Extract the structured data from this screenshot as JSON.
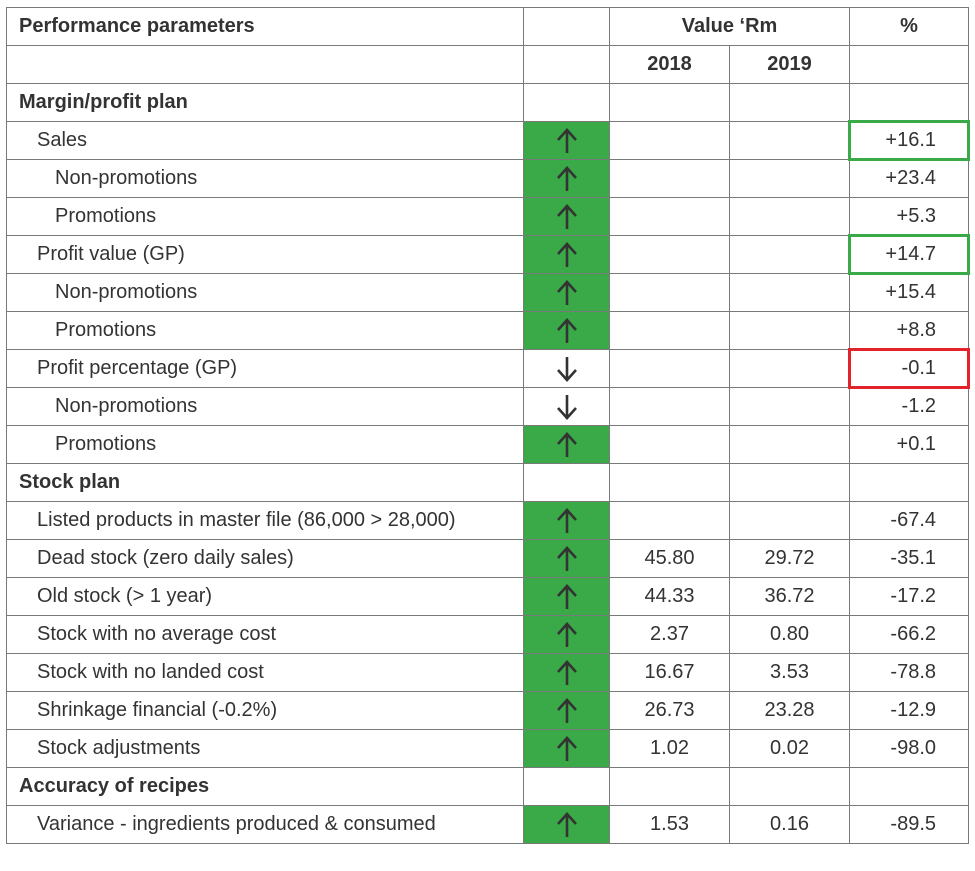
{
  "header": {
    "param": "Performance parameters",
    "value": "Value ‘Rm",
    "pct": "%",
    "y2018": "2018",
    "y2019": "2019"
  },
  "arrow_icon_names": {
    "up": "up-arrow-icon",
    "down": "down-arrow-icon"
  },
  "colors": {
    "up_fill": "#3aaa49",
    "highlight_green": "#3aaa49",
    "highlight_red": "#e2232b"
  },
  "sections": {
    "margin": "Margin/profit plan",
    "stock": "Stock plan",
    "recipes": "Accuracy of recipes"
  },
  "rows": [
    {
      "label": "Sales",
      "indent": 1,
      "arrow": "up",
      "v2018": "",
      "v2019": "",
      "pct": "+16.1",
      "highlight": "green"
    },
    {
      "label": "Non-promotions",
      "indent": 2,
      "arrow": "up",
      "v2018": "",
      "v2019": "",
      "pct": "+23.4",
      "highlight": ""
    },
    {
      "label": "Promotions",
      "indent": 2,
      "arrow": "up",
      "v2018": "",
      "v2019": "",
      "pct": "+5.3",
      "highlight": ""
    },
    {
      "label": "Profit value (GP)",
      "indent": 1,
      "arrow": "up",
      "v2018": "",
      "v2019": "",
      "pct": "+14.7",
      "highlight": "green"
    },
    {
      "label": "Non-promotions",
      "indent": 2,
      "arrow": "up",
      "v2018": "",
      "v2019": "",
      "pct": "+15.4",
      "highlight": ""
    },
    {
      "label": "Promotions",
      "indent": 2,
      "arrow": "up",
      "v2018": "",
      "v2019": "",
      "pct": "+8.8",
      "highlight": ""
    },
    {
      "label": "Profit percentage (GP)",
      "indent": 1,
      "arrow": "down",
      "v2018": "",
      "v2019": "",
      "pct": "-0.1",
      "highlight": "red"
    },
    {
      "label": "Non-promotions",
      "indent": 2,
      "arrow": "down",
      "v2018": "",
      "v2019": "",
      "pct": "-1.2",
      "highlight": ""
    },
    {
      "label": "Promotions",
      "indent": 2,
      "arrow": "up",
      "v2018": "",
      "v2019": "",
      "pct": "+0.1",
      "highlight": ""
    },
    {
      "label": "Listed products in master file (86,000 > 28,000)",
      "indent": 1,
      "arrow": "up",
      "v2018": "",
      "v2019": "",
      "pct": "-67.4",
      "highlight": ""
    },
    {
      "label": "Dead stock (zero daily sales)",
      "indent": 1,
      "arrow": "up",
      "v2018": "45.80",
      "v2019": "29.72",
      "pct": "-35.1",
      "highlight": ""
    },
    {
      "label": "Old stock (> 1 year)",
      "indent": 1,
      "arrow": "up",
      "v2018": "44.33",
      "v2019": "36.72",
      "pct": "-17.2",
      "highlight": ""
    },
    {
      "label": "Stock with no average cost",
      "indent": 1,
      "arrow": "up",
      "v2018": "2.37",
      "v2019": "0.80",
      "pct": "-66.2",
      "highlight": ""
    },
    {
      "label": "Stock with no landed cost",
      "indent": 1,
      "arrow": "up",
      "v2018": "16.67",
      "v2019": "3.53",
      "pct": "-78.8",
      "highlight": ""
    },
    {
      "label": "Shrinkage financial (-0.2%)",
      "indent": 1,
      "arrow": "up",
      "v2018": "26.73",
      "v2019": "23.28",
      "pct": "-12.9",
      "highlight": ""
    },
    {
      "label": "Stock adjustments",
      "indent": 1,
      "arrow": "up",
      "v2018": "1.02",
      "v2019": "0.02",
      "pct": "-98.0",
      "highlight": ""
    },
    {
      "label": "Variance - ingredients produced & consumed",
      "indent": 1,
      "arrow": "up",
      "v2018": "1.53",
      "v2019": "0.16",
      "pct": "-89.5",
      "highlight": ""
    }
  ]
}
